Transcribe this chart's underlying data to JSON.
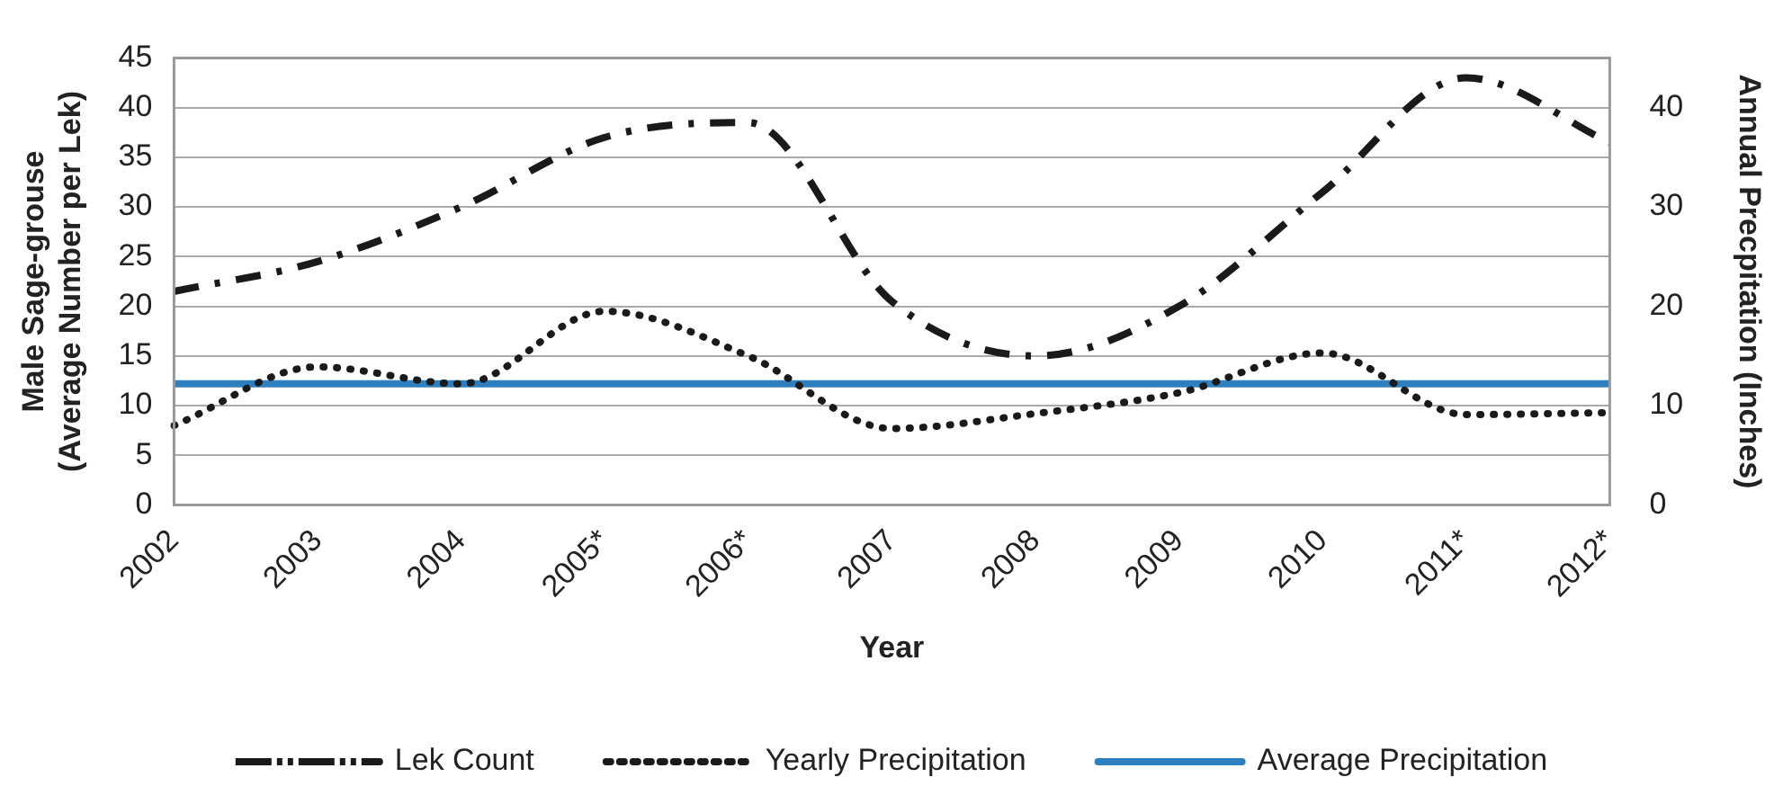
{
  "chart_data": {
    "type": "line",
    "xlabel": "Year",
    "ylabel": "Male Sage-grouse\n(Average Number per Lek)",
    "y2label": "Annual Precpitation (Inches)",
    "categories": [
      "2002",
      "2003",
      "2004",
      "2005*",
      "2006*",
      "2007",
      "2008",
      "2009",
      "2010",
      "2011*",
      "2012*"
    ],
    "series": [
      {
        "name": "Lek Count",
        "color": "#1a1a1a",
        "line_style": "dashed",
        "values": [
          21.5,
          24.5,
          30,
          37,
          38.5,
          20.5,
          15,
          20,
          31.5,
          43,
          36.5
        ]
      },
      {
        "name": "Yearly Precipitation",
        "color": "#1a1a1a",
        "line_style": "dotted",
        "axis": "y2",
        "values": [
          8,
          13.9,
          12.2,
          19.5,
          15,
          7.7,
          9.2,
          11.3,
          15.3,
          9.1,
          9.3
        ]
      },
      {
        "name": "Average Precipitation",
        "color": "#2e7fbf",
        "line_style": "solid",
        "axis": "y2",
        "values": [
          12.2,
          12.2,
          12.2,
          12.2,
          12.2,
          12.2,
          12.2,
          12.2,
          12.2,
          12.2,
          12.2
        ]
      }
    ],
    "ylim": [
      0,
      45
    ],
    "yticks": [
      0,
      5,
      10,
      15,
      20,
      25,
      30,
      35,
      40,
      45
    ],
    "y2lim": [
      0,
      45
    ],
    "y2ticks": [
      0,
      10,
      20,
      30,
      40
    ],
    "grid": "y",
    "legend": "bottom",
    "marker": "none"
  }
}
